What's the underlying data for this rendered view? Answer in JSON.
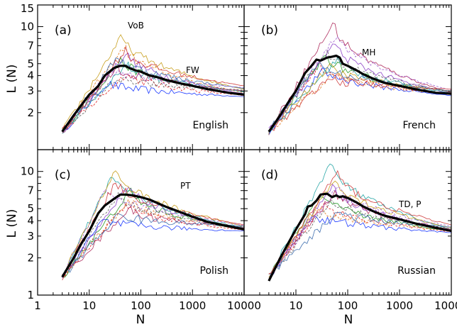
{
  "chart_data": {
    "type": "line",
    "scale": "log-log",
    "xlabel": "N",
    "ylabel": "L (N)",
    "xlim": [
      1,
      10000
    ],
    "ylim": [
      1,
      15
    ],
    "x_ticks": [
      1,
      10,
      100,
      1000,
      10000
    ],
    "x_tick_labels": [
      "1",
      "10",
      "100",
      "1000",
      "10000"
    ],
    "y_ticks": [
      1,
      2,
      3,
      4,
      5,
      7,
      10,
      15
    ],
    "y_tick_labels": [
      "1",
      "2",
      "3",
      "4",
      "5",
      "7",
      "10",
      "15"
    ],
    "panels": [
      {
        "id": "a",
        "tag": "(a)",
        "language": "English",
        "annotation": "FW",
        "annotation2": "VoB",
        "mean_series": {
          "name": "mean",
          "x": [
            3,
            5,
            7,
            10,
            15,
            20,
            30,
            40,
            50,
            60,
            80,
            100,
            150,
            200,
            300,
            500,
            1000,
            2000,
            5000,
            10000
          ],
          "y": [
            1.4,
            1.9,
            2.3,
            2.8,
            3.3,
            4.0,
            4.6,
            4.8,
            4.8,
            4.6,
            4.4,
            4.3,
            4.0,
            3.9,
            3.7,
            3.5,
            3.3,
            3.1,
            2.9,
            2.8
          ]
        },
        "peaks": [
          3.5,
          4.2,
          5.5,
          6.2,
          7.0,
          5.0,
          4.8,
          3.8,
          8.5,
          5.8,
          4.5,
          6.5
        ],
        "tails": [
          2.7,
          2.75,
          2.8,
          2.85,
          2.9,
          2.95,
          3.0,
          3.05,
          3.1,
          3.15,
          3.2,
          3.3
        ]
      },
      {
        "id": "b",
        "tag": "(b)",
        "language": "French",
        "annotation": "MH",
        "mean_series": {
          "name": "mean",
          "x": [
            3,
            5,
            7,
            10,
            15,
            20,
            25,
            30,
            40,
            50,
            60,
            70,
            80,
            100,
            150,
            200,
            300,
            500,
            1000,
            2000,
            5000,
            10000
          ],
          "y": [
            1.4,
            1.9,
            2.4,
            3.0,
            4.2,
            4.8,
            5.4,
            5.3,
            5.6,
            5.7,
            5.8,
            5.6,
            5.0,
            4.8,
            4.4,
            4.1,
            3.8,
            3.5,
            3.3,
            3.1,
            2.9,
            2.85
          ]
        },
        "peaks": [
          4.5,
          5.0,
          6.0,
          7.5,
          4.2,
          5.5,
          11.0,
          6.5,
          4.8,
          5.2,
          9.0,
          3.8
        ],
        "tails": [
          2.75,
          2.8,
          2.8,
          2.85,
          2.85,
          2.9,
          2.9,
          2.95,
          3.0,
          3.0,
          3.05,
          3.1
        ]
      },
      {
        "id": "c",
        "tag": "(c)",
        "language": "Polish",
        "annotation": "PT",
        "mean_series": {
          "name": "mean",
          "x": [
            3,
            5,
            7,
            10,
            15,
            20,
            30,
            40,
            50,
            70,
            100,
            150,
            200,
            300,
            500,
            1000,
            2000,
            5000,
            10000
          ],
          "y": [
            1.4,
            2.0,
            2.6,
            3.3,
            4.6,
            5.3,
            6.0,
            6.5,
            6.5,
            6.4,
            6.2,
            5.9,
            5.6,
            5.2,
            4.8,
            4.3,
            3.9,
            3.6,
            3.4
          ]
        },
        "peaks": [
          4.0,
          5.5,
          7.0,
          8.0,
          6.0,
          9.5,
          5.0,
          6.5,
          10.5,
          4.5,
          7.5,
          8.5
        ],
        "tails": [
          3.3,
          3.35,
          3.4,
          3.4,
          3.45,
          3.5,
          3.5,
          3.55,
          3.6,
          3.6,
          3.65,
          3.7
        ]
      },
      {
        "id": "d",
        "tag": "(d)",
        "language": "Russian",
        "annotation": "TD, P",
        "mean_series": {
          "name": "mean",
          "x": [
            3,
            5,
            7,
            10,
            15,
            17,
            20,
            25,
            30,
            40,
            50,
            60,
            70,
            80,
            100,
            150,
            200,
            300,
            500,
            1000,
            2000,
            5000,
            10000
          ],
          "y": [
            1.3,
            2.0,
            2.6,
            3.4,
            4.5,
            5.2,
            5.3,
            5.8,
            6.5,
            6.6,
            6.2,
            6.4,
            6.2,
            6.3,
            6.1,
            5.6,
            5.2,
            4.8,
            4.4,
            4.1,
            3.8,
            3.5,
            3.3
          ]
        },
        "peaks": [
          4.5,
          5.5,
          6.5,
          8.0,
          5.0,
          12.0,
          7.0,
          6.0,
          9.0,
          4.8,
          7.5,
          10.0
        ],
        "tails": [
          3.2,
          3.25,
          3.3,
          3.3,
          3.35,
          3.4,
          3.4,
          3.45,
          3.5,
          3.55,
          3.6,
          3.7
        ]
      }
    ],
    "colors": [
      "#1f3cff",
      "#e02020",
      "#2a9a2a",
      "#8e44c8",
      "#e07820",
      "#2aa7a7",
      "#b03060",
      "#606060",
      "#c8a020",
      "#4070b0",
      "#a060d0",
      "#d04040"
    ]
  }
}
